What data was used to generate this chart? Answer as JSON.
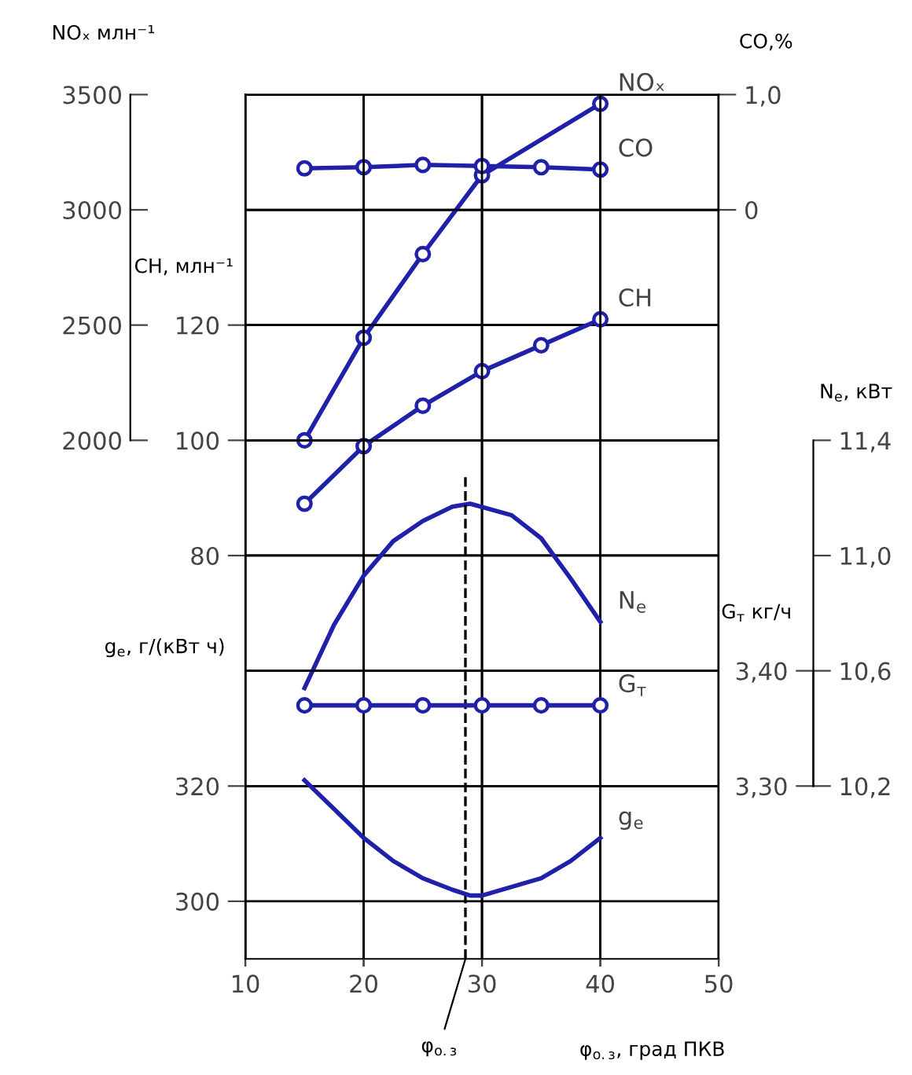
{
  "chart_data": [
    {
      "type": "line",
      "xlim": [
        10,
        50
      ],
      "xticks": [
        10,
        20,
        30,
        40,
        50
      ],
      "xlabel": "φ$_{о.з}$, град ПКВ",
      "ylim": [
        -250,
        3500
      ],
      "yticks": [
        2000,
        2500,
        3000,
        3500
      ],
      "ylabel": "NOₓ млн⁻¹",
      "y2lim": [
        10,
        160
      ],
      "y2ticks": [
        80,
        100,
        120
      ],
      "y2label": "CH, млн⁻¹",
      "y3lim": [
        -6.5,
        1.0
      ],
      "y3ticks": [
        0,
        {
          "value": 1.0,
          "label": "1,0"
        }
      ],
      "y3label": "CO,%",
      "grid": true,
      "series": [
        {
          "name": "CO",
          "axis": "y3",
          "color": "#2020a8",
          "marker": "circle",
          "x": [
            15,
            20,
            25,
            30,
            35,
            40
          ],
          "values": [
            0.36,
            0.37,
            0.39,
            0.38,
            0.37,
            0.35
          ]
        },
        {
          "name": "NOₓ",
          "color": "#2020a8",
          "marker": "circle",
          "x": [
            15,
            20,
            25,
            30,
            40
          ],
          "values": [
            2000,
            2445,
            2808,
            3150,
            3460
          ]
        },
        {
          "name": "CH",
          "axis": "y2",
          "color": "#2020a8",
          "marker": "circle",
          "x": [
            15,
            20,
            25,
            30,
            35,
            40
          ],
          "values": [
            89,
            99,
            106,
            112,
            116.5,
            121
          ]
        }
      ]
    },
    {
      "type": "line",
      "xlim": [
        10,
        50
      ],
      "xticks": [
        10,
        20,
        30,
        40,
        50
      ],
      "tick_labels": "y",
      "ylim": [
        9.6,
        12.6
      ],
      "yticks": [
        {
          "value": 10.2,
          "label": "10,2"
        },
        {
          "value": 10.6,
          "label": "10,6"
        },
        {
          "value": 11.0,
          "label": "11,0"
        },
        {
          "value": 11.4,
          "label": "11,4"
        }
      ],
      "ylabel": "N$_{e}$, кВт",
      "y2lim": [
        3.15,
        3.9
      ],
      "y2ticks": [
        {
          "value": 3.3,
          "label": "3,30"
        },
        {
          "value": 3.4,
          "label": "3,40"
        }
      ],
      "y2label": "G$_{т}$ кг/ч",
      "y3lim": [
        290,
        440
      ],
      "y3ticks": [
        300,
        320
      ],
      "y3label": "g$_{e}$, г/(кВт ч)",
      "grid": true,
      "series": [
        {
          "name": "N$_{e}$",
          "color": "#2020a8",
          "marker": "none",
          "x": [
            15,
            17.5,
            20,
            22.5,
            25,
            27.5,
            29,
            32.5,
            35,
            37.5,
            40
          ],
          "values": [
            10.54,
            10.76,
            10.93,
            11.05,
            11.12,
            11.17,
            11.18,
            11.14,
            11.06,
            10.92,
            10.77
          ]
        },
        {
          "name": "G$_{т}$",
          "axis": "y2",
          "color": "#2020a8",
          "marker": "circle",
          "x": [
            15,
            20,
            25,
            30,
            35,
            40
          ],
          "values": [
            3.37,
            3.37,
            3.37,
            3.37,
            3.37,
            3.37
          ]
        },
        {
          "name": "g$_{e}$",
          "axis": "y3",
          "color": "#2020a8",
          "marker": "none",
          "x": [
            15,
            17.5,
            20,
            22.5,
            25,
            27.5,
            29,
            30,
            32.5,
            35,
            37.5,
            40
          ],
          "values": [
            321,
            316,
            311,
            307,
            304,
            302,
            301,
            301,
            302.5,
            304,
            307,
            311
          ]
        }
      ],
      "ref_lines": [
        {
          "axis": "x",
          "value": 28.6,
          "label": "φ$_{о.з}$",
          "color": "#000000",
          "line_style": "dashed"
        }
      ]
    }
  ]
}
